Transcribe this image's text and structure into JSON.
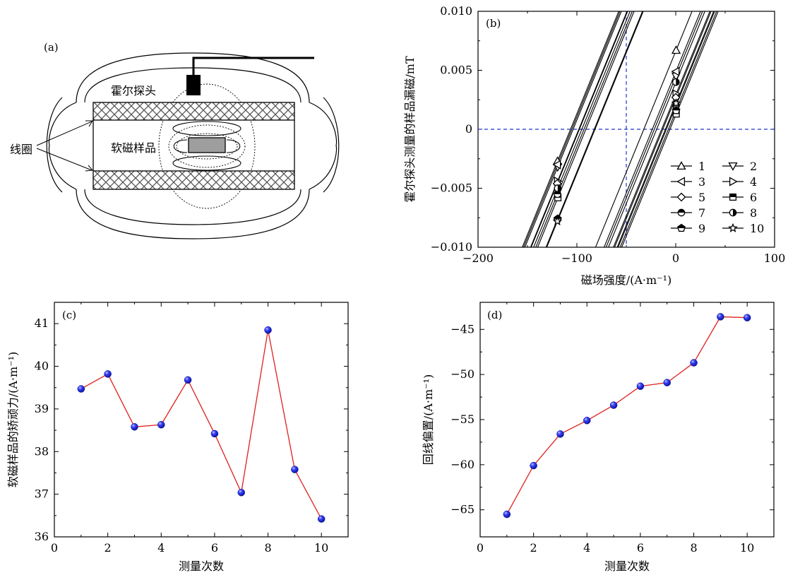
{
  "panel_a": {
    "label": "(a)",
    "probe_label": "霍尔探头",
    "sample_label": "软磁样品",
    "coil_label": "线圈"
  },
  "chart_data": [
    {
      "panel": "(b)",
      "type": "line",
      "xlabel": "磁场强度/(A·m⁻¹)",
      "ylabel": "霍尔探头测量的样品漏磁/mT",
      "xlim": [
        -200,
        100
      ],
      "ylim": [
        -0.01,
        0.01
      ],
      "xticks": [
        -200,
        -100,
        0,
        100
      ],
      "xtick_labels": [
        "−200",
        "−100",
        "0",
        "100"
      ],
      "yticks": [
        -0.01,
        -0.005,
        0,
        0.005,
        0.01
      ],
      "ytick_labels": [
        "−0.010",
        "−0.005",
        "0",
        "0.005",
        "0.010"
      ],
      "reference_lines": {
        "x": -50,
        "y": 0,
        "color": "#2233cc",
        "style": "dashed"
      },
      "line_color": "#000000",
      "legend_position": "lower-right",
      "series": [
        {
          "name": "1",
          "marker": "triangle-up",
          "x_left": -119.6,
          "x_right": 0.4,
          "y_left": -0.0027,
          "y_right": 0.0067
        },
        {
          "name": "2",
          "marker": "triangle-down",
          "x_left": -119.4,
          "x_right": 0.3,
          "y_left": -0.0032,
          "y_right": 0.0045
        },
        {
          "name": "3",
          "marker": "triangle-left",
          "x_left": -119.8,
          "x_right": 0.2,
          "y_left": -0.003,
          "y_right": 0.0049
        },
        {
          "name": "4",
          "marker": "triangle-right",
          "x_left": -119.5,
          "x_right": 0.4,
          "y_left": -0.0044,
          "y_right": 0.003
        },
        {
          "name": "5",
          "marker": "diamond",
          "x_left": -119.9,
          "x_right": 0.1,
          "y_left": -0.0046,
          "y_right": 0.0027
        },
        {
          "name": "6",
          "marker": "square-half",
          "x_left": -119.2,
          "x_right": 0.5,
          "y_left": -0.0058,
          "y_right": 0.0013
        },
        {
          "name": "7",
          "marker": "circle-half",
          "x_left": -119.6,
          "x_right": 0.3,
          "y_left": -0.0055,
          "y_right": 0.002
        },
        {
          "name": "8",
          "marker": "circle-vhalf",
          "x_left": -119.4,
          "x_right": 0.2,
          "y_left": -0.005,
          "y_right": 0.004
        },
        {
          "name": "9",
          "marker": "pentagon-half",
          "x_left": -119.5,
          "x_right": 0.4,
          "y_left": -0.0076,
          "y_right": 0.0016
        },
        {
          "name": "10",
          "marker": "star",
          "x_left": -119.7,
          "x_right": 0.3,
          "y_left": -0.0078,
          "y_right": 0.0022
        }
      ]
    },
    {
      "panel": "(c)",
      "type": "line",
      "xlabel": "测量次数",
      "ylabel": "软磁样品的矫顽力/(A·m⁻¹)",
      "xlim": [
        0,
        11
      ],
      "ylim": [
        36,
        41.5
      ],
      "xticks": [
        0,
        2,
        4,
        6,
        8,
        10
      ],
      "yticks": [
        36,
        37,
        38,
        39,
        40,
        41
      ],
      "line_color": "#e02020",
      "marker_color": "#1a22e6",
      "x": [
        1,
        2,
        3,
        4,
        5,
        6,
        7,
        8,
        9,
        10
      ],
      "values": [
        39.47,
        39.82,
        38.58,
        38.63,
        39.68,
        38.42,
        37.04,
        40.85,
        37.58,
        36.42
      ]
    },
    {
      "panel": "(d)",
      "type": "line",
      "xlabel": "测量次数",
      "ylabel": "回线偏置/(A·m⁻¹)",
      "xlim": [
        0,
        11
      ],
      "ylim": [
        -68,
        -42
      ],
      "xticks": [
        0,
        2,
        4,
        6,
        8,
        10
      ],
      "yticks": [
        -65,
        -60,
        -55,
        -50,
        -45
      ],
      "ytick_labels": [
        "−65",
        "−60",
        "−55",
        "−50",
        "−45"
      ],
      "line_color": "#e02020",
      "marker_color": "#1a22e6",
      "x": [
        1,
        2,
        3,
        4,
        5,
        6,
        7,
        8,
        9,
        10
      ],
      "values": [
        -65.5,
        -60.1,
        -56.6,
        -55.1,
        -53.4,
        -51.3,
        -50.9,
        -48.7,
        -43.6,
        -43.7
      ]
    }
  ]
}
